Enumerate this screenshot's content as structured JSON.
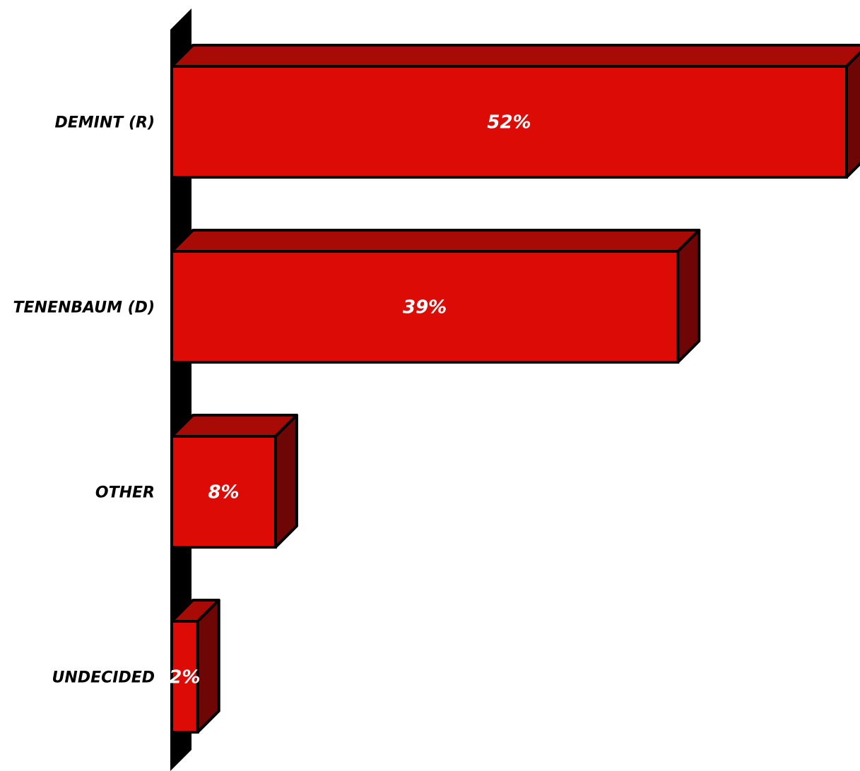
{
  "chart_data": {
    "type": "bar",
    "orientation": "horizontal",
    "style": "3d",
    "categories": [
      "DEMINT (R)",
      "TENENBAUM (D)",
      "OTHER",
      "UNDECIDED"
    ],
    "values": [
      52,
      39,
      8,
      2
    ],
    "value_labels": [
      "52%",
      "39%",
      "8%",
      "2%"
    ],
    "unit": "%",
    "xlim": [
      0,
      52
    ],
    "grid": false,
    "legend": "none",
    "colors": {
      "bar_front": "#dd0b05",
      "bar_top": "#a80a06",
      "bar_side": "#6e0606",
      "axis_wall": "#000000",
      "value_text": "#ffffff",
      "category_text": "#000000"
    }
  }
}
